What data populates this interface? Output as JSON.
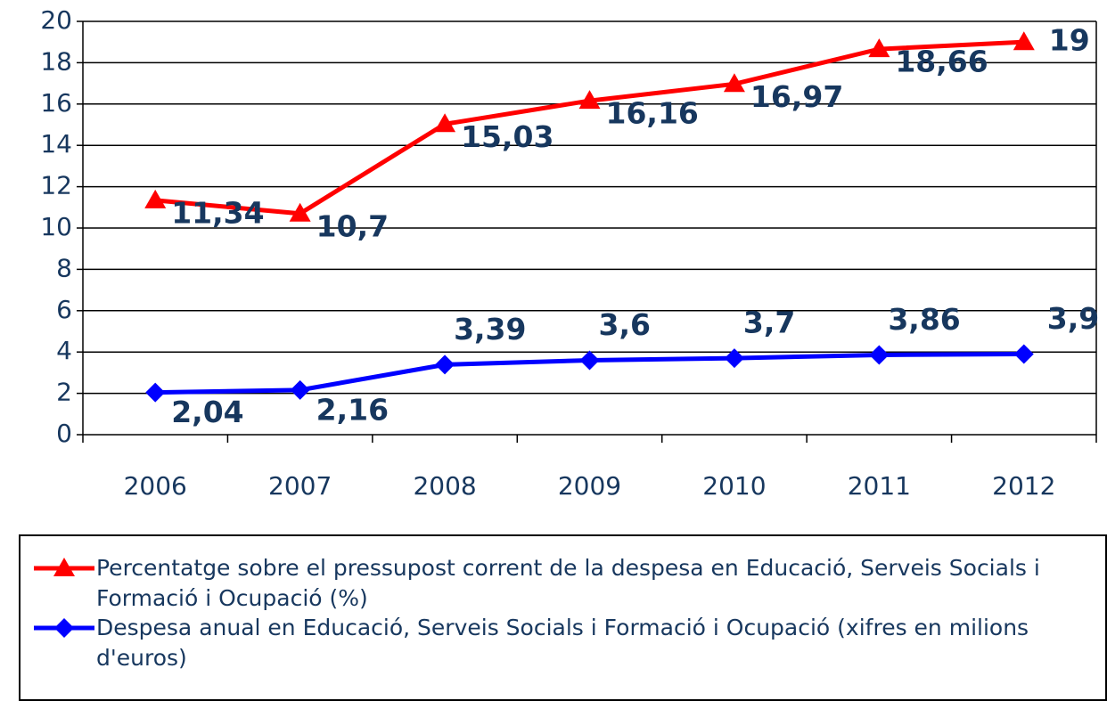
{
  "chart_data": {
    "type": "line",
    "categories": [
      "2006",
      "2007",
      "2008",
      "2009",
      "2010",
      "2011",
      "2012"
    ],
    "series": [
      {
        "name": "Percentatge sobre el pressupost corrent de la despesa en Educació, Serveis Socials i Formació i Ocupació (%)",
        "color": "#ff0000",
        "marker": "triangle",
        "values": [
          11.34,
          10.7,
          15.03,
          16.16,
          16.97,
          18.66,
          19
        ],
        "value_labels": [
          "11,34",
          "10,7",
          "15,03",
          "16,16",
          "16,97",
          "18,66",
          "19"
        ]
      },
      {
        "name": "Despesa anual en Educació, Serveis Socials i Formació i Ocupació (xifres en milions d'euros)",
        "color": "#0000ff",
        "marker": "diamond",
        "values": [
          2.04,
          2.16,
          3.39,
          3.6,
          3.7,
          3.86,
          3.9
        ],
        "value_labels": [
          "2,04",
          "2,16",
          "3,39",
          "3,6",
          "3,7",
          "3,86",
          "3,9"
        ]
      }
    ],
    "ylim": [
      0,
      20
    ],
    "yticks": [
      0,
      2,
      4,
      6,
      8,
      10,
      12,
      14,
      16,
      18,
      20
    ],
    "grid": true,
    "legend": "bottom"
  }
}
